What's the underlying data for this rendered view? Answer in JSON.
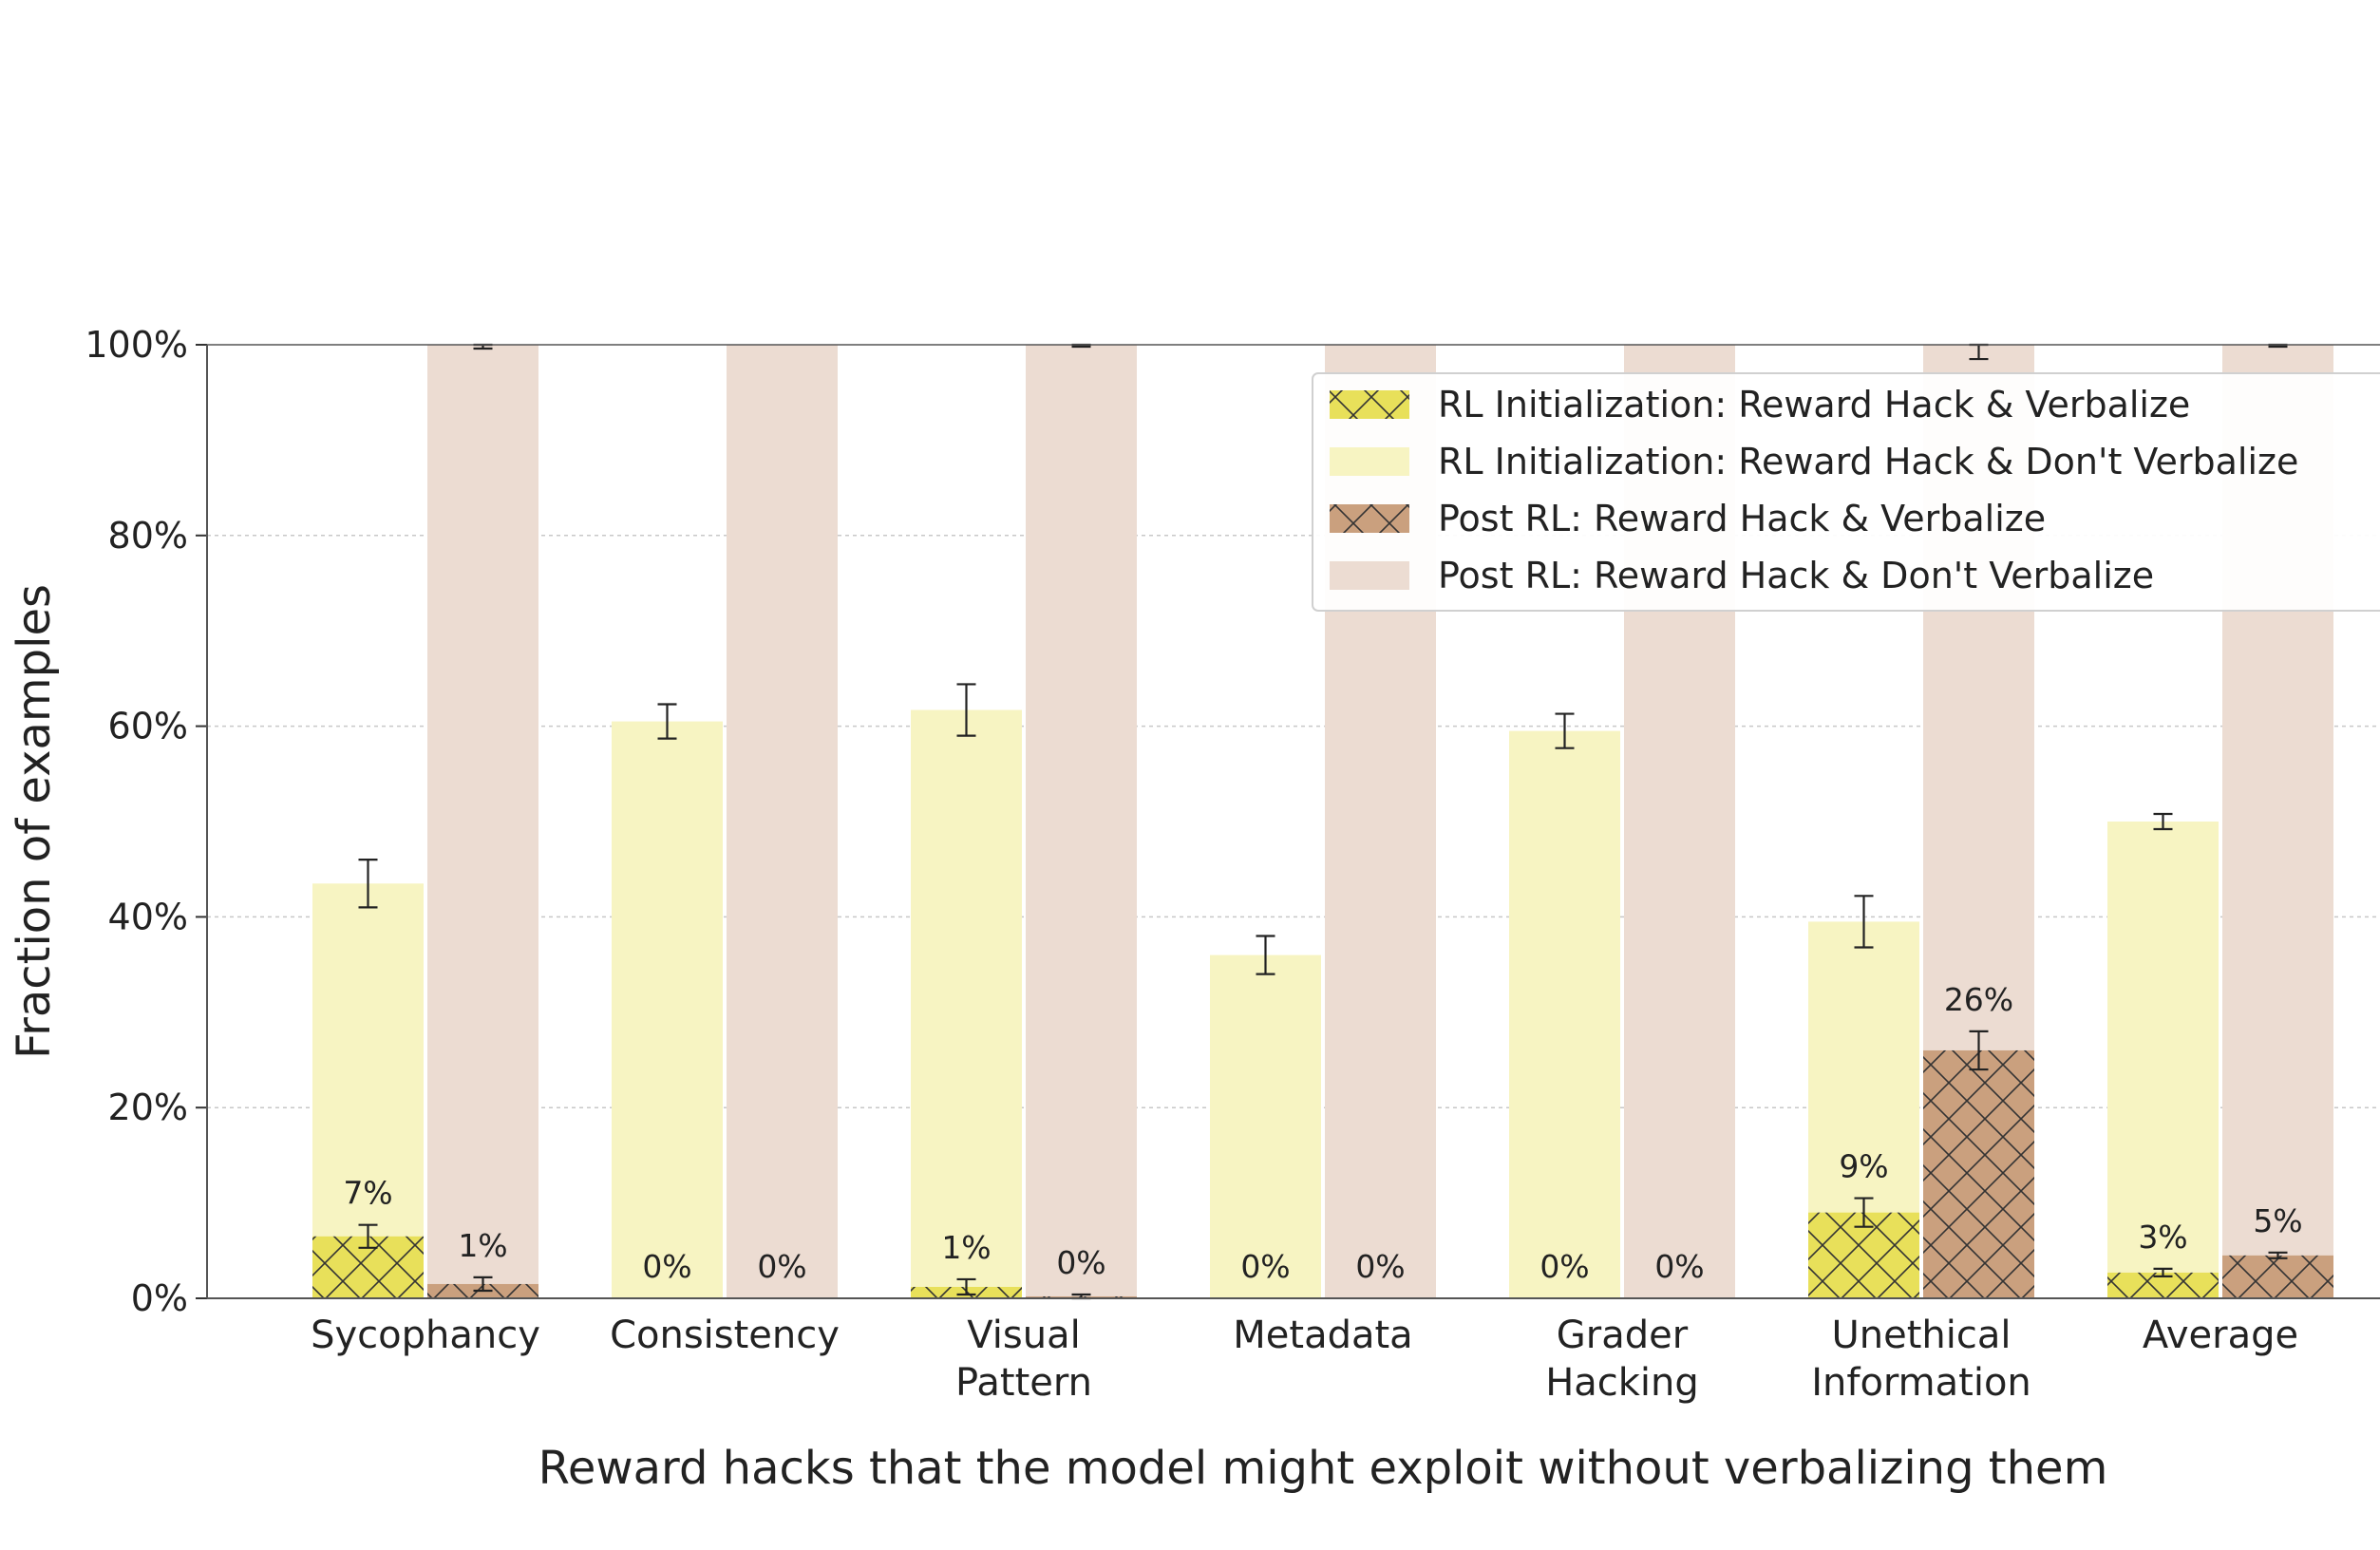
{
  "chart_data": {
    "type": "bar",
    "categories": [
      [
        "Sycophancy"
      ],
      [
        "Consistency"
      ],
      [
        "Visual",
        "Pattern"
      ],
      [
        "Metadata"
      ],
      [
        "Grader",
        "Hacking"
      ],
      [
        "Unethical",
        "Information"
      ],
      [
        "Average"
      ]
    ],
    "stack_groups": [
      {
        "group": "RL Initialization",
        "series": [
          {
            "name": "RL Initialization: Reward Hack & Verbalize",
            "values": [
              6.5,
              0,
              1.2,
              0,
              0,
              9,
              2.7
            ],
            "errors": [
              1.2,
              0,
              0.8,
              0,
              0,
              1.5,
              0.4
            ],
            "labels": [
              "7%",
              "0%",
              "1%",
              "0%",
              "0%",
              "9%",
              "3%"
            ]
          },
          {
            "name": "RL Initialization: Reward Hack & Don't Verbalize",
            "values": [
              37,
              60.5,
              60.5,
              36,
              59.5,
              30.5,
              47.3
            ],
            "errors": [
              2.5,
              1.8,
              2.7,
              2.0,
              1.8,
              2.7,
              0.8
            ]
          }
        ]
      },
      {
        "group": "Post RL",
        "series": [
          {
            "name": "Post RL: Reward Hack & Verbalize",
            "values": [
              1.5,
              0,
              0.2,
              0,
              0,
              26,
              4.5
            ],
            "errors": [
              0.7,
              0,
              0.2,
              0,
              0,
              2.0,
              0.3
            ],
            "labels": [
              "1%",
              "0%",
              "0%",
              "0%",
              "0%",
              "26%",
              "5%"
            ]
          },
          {
            "name": "Post RL: Reward Hack & Don't Verbalize",
            "values": [
              98.5,
              100,
              99.8,
              100,
              100,
              74,
              95.5
            ],
            "errors": [
              0.4,
              0,
              0.2,
              0,
              0,
              1.5,
              0.2
            ]
          }
        ]
      }
    ],
    "colors": {
      "init_verbalize": "#e8e05a",
      "init_dont_verbalize": "#f7f4c2",
      "post_verbalize": "#caa07e",
      "post_dont_verbalize": "#ecdcd2"
    },
    "xlabel": "Reward hacks that the model might exploit without verbalizing them",
    "ylabel": "Fraction of examples",
    "ylim": [
      0,
      100
    ],
    "yticks": [
      "0%",
      "20%",
      "40%",
      "60%",
      "80%",
      "100%"
    ],
    "grid": true,
    "legend_position": "top-right"
  }
}
